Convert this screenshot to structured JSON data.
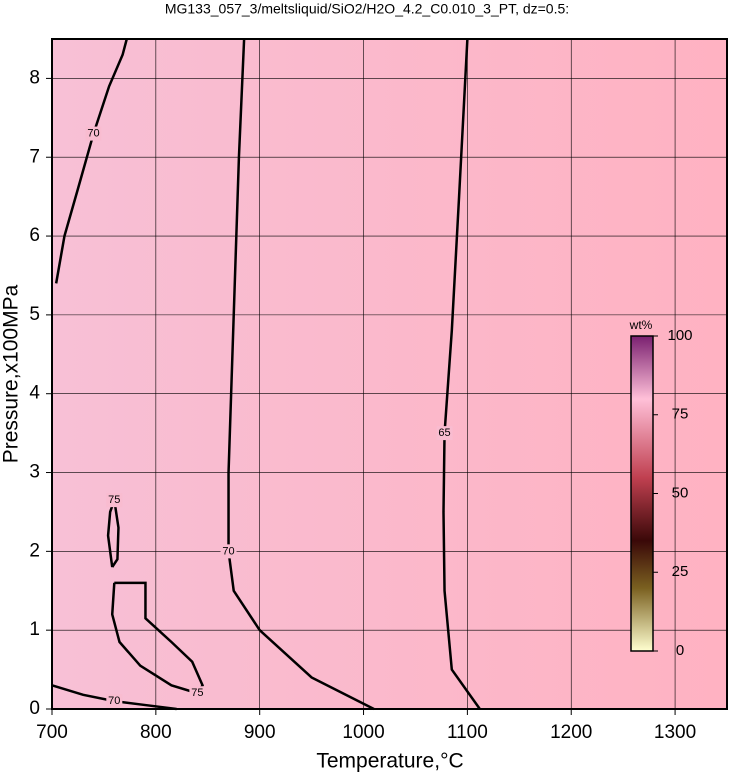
{
  "chart_data": {
    "type": "contour",
    "title": "MG133_057_3/meltsliquid/SiO2/H2O_4.2_C0.010_3_PT, dz=0.5:",
    "xlabel": "Temperature,°C",
    "ylabel": "Pressure,x100MPa",
    "xlim": [
      700,
      1350
    ],
    "ylim": [
      0,
      8.5
    ],
    "xticks": [
      700,
      800,
      900,
      1000,
      1100,
      1200,
      1300
    ],
    "yticks": [
      0,
      1,
      2,
      3,
      4,
      5,
      6,
      7,
      8
    ],
    "grid": true,
    "contours": [
      {
        "level": 65,
        "x": [
          1112,
          1085,
          1078,
          1077,
          1078,
          1085,
          1092,
          1100
        ],
        "y": [
          0,
          0.5,
          1.5,
          2.5,
          3.5,
          4.8,
          6.5,
          8.5
        ]
      },
      {
        "level": 70,
        "x": [
          1010,
          950,
          900,
          875,
          870,
          870,
          875,
          880,
          885
        ],
        "y": [
          0,
          0.4,
          1.0,
          1.5,
          2.0,
          3.0,
          5.0,
          7.0,
          8.5
        ]
      },
      {
        "level": 70,
        "x": [
          704,
          712,
          725,
          740,
          755,
          768,
          772
        ],
        "y": [
          5.4,
          6.0,
          6.6,
          7.3,
          7.9,
          8.3,
          8.5
        ]
      },
      {
        "level": 75,
        "x": [
          760,
          790,
          790,
          815,
          835,
          845,
          840,
          815,
          785,
          765,
          758,
          760
        ],
        "y": [
          1.6,
          1.6,
          1.15,
          0.85,
          0.6,
          0.3,
          0.2,
          0.3,
          0.55,
          0.85,
          1.2,
          1.6
        ]
      },
      {
        "level": 75,
        "x": [
          758,
          754,
          756,
          760,
          764,
          763,
          758
        ],
        "y": [
          1.8,
          2.2,
          2.5,
          2.65,
          2.3,
          1.9,
          1.8
        ]
      },
      {
        "level": 70,
        "x": [
          700,
          730,
          760,
          790,
          820
        ],
        "y": [
          0.3,
          0.18,
          0.1,
          0.05,
          0.0
        ]
      }
    ],
    "colorbar": {
      "label": "wt%",
      "lim": [
        0,
        100
      ],
      "ticks": [
        0,
        25,
        50,
        75,
        100
      ]
    }
  }
}
